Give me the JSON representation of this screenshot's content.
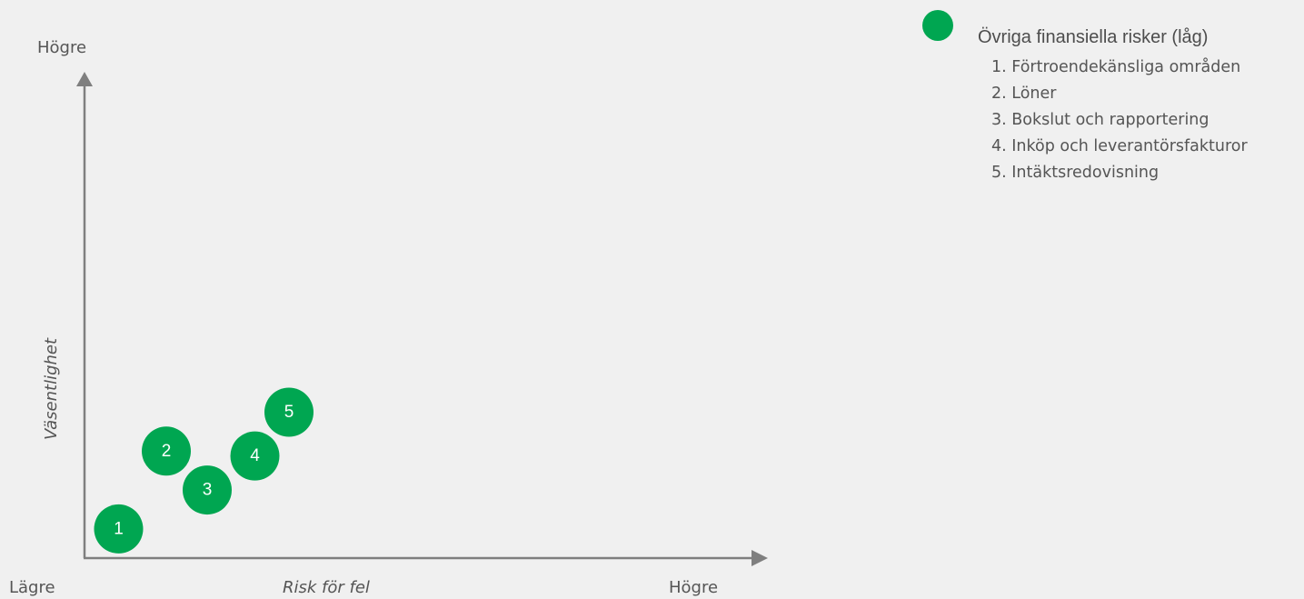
{
  "chart_data": {
    "type": "scatter",
    "title": "",
    "xlabel": "Risk för fel",
    "ylabel": "Väsentlighet",
    "x_axis_ends": {
      "low": "Lägre",
      "high": "Högre"
    },
    "y_axis_ends": {
      "high": "Högre"
    },
    "xlim": [
      0,
      10
    ],
    "ylim": [
      0,
      10
    ],
    "grid": false,
    "legend_position": "top-right",
    "series": [
      {
        "name": "Övriga finansiella risker (låg)",
        "color": "#00a651",
        "points": [
          {
            "label": "1",
            "x": 0.5,
            "y": 0.6
          },
          {
            "label": "2",
            "x": 1.2,
            "y": 2.2
          },
          {
            "label": "3",
            "x": 1.8,
            "y": 1.4
          },
          {
            "label": "4",
            "x": 2.5,
            "y": 2.1
          },
          {
            "label": "5",
            "x": 3.0,
            "y": 3.0
          }
        ]
      }
    ]
  },
  "legend": {
    "title": "Övriga finansiella risker (låg)",
    "swatch_color": "#00a651",
    "items": [
      "1. Förtroendekänsliga områden",
      "2. Löner",
      "3. Bokslut och rapportering",
      "4. Inköp och leverantörsfakturor",
      "5. Intäktsredovisning"
    ]
  }
}
